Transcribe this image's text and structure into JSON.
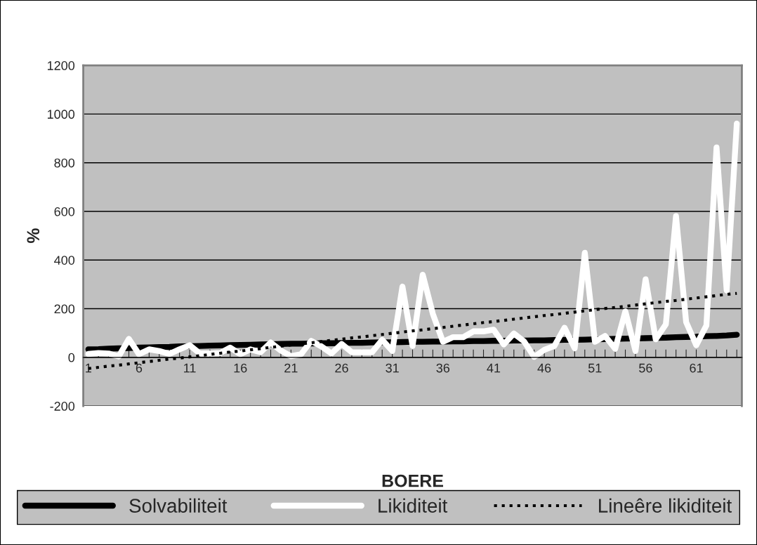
{
  "chart_data": {
    "type": "line",
    "xlabel": "BOERE",
    "ylabel": "%",
    "categories": [
      "1",
      null,
      null,
      null,
      null,
      "6",
      null,
      null,
      null,
      null,
      "11",
      null,
      null,
      null,
      null,
      "16",
      null,
      null,
      null,
      null,
      "21",
      null,
      null,
      null,
      null,
      "26",
      null,
      null,
      null,
      null,
      "31",
      null,
      null,
      null,
      null,
      "36",
      null,
      null,
      null,
      null,
      "41",
      null,
      null,
      null,
      null,
      "46",
      null,
      null,
      null,
      null,
      "51",
      null,
      null,
      null,
      null,
      "56",
      null,
      null,
      null,
      null,
      "61",
      null,
      null,
      null,
      null
    ],
    "series": [
      {
        "name": "Solvabiliteit",
        "color": "#000000",
        "line_style": "solid",
        "values": [
          33,
          34,
          36,
          37,
          38,
          40,
          41,
          42,
          43,
          45,
          46,
          47,
          48,
          49,
          50,
          51,
          52,
          53,
          54,
          55,
          56,
          56,
          57,
          58,
          58,
          59,
          60,
          60,
          61,
          62,
          62,
          63,
          64,
          64,
          65,
          65,
          66,
          66,
          67,
          67,
          68,
          68,
          69,
          69,
          70,
          70,
          71,
          72,
          72,
          73,
          74,
          75,
          76,
          77,
          78,
          79,
          80,
          81,
          83,
          84,
          85,
          87,
          88,
          90,
          93
        ]
      },
      {
        "name": "Likiditeit",
        "color": "#ffffff",
        "line_style": "solid",
        "values": [
          14,
          18,
          16,
          4,
          76,
          13,
          33,
          26,
          14,
          33,
          50,
          16,
          16,
          18,
          40,
          13,
          33,
          21,
          61,
          28,
          5,
          13,
          68,
          45,
          16,
          55,
          21,
          21,
          21,
          72,
          26,
          291,
          47,
          340,
          179,
          64,
          83,
          83,
          107,
          107,
          114,
          53,
          98,
          66,
          2,
          31,
          47,
          122,
          37,
          430,
          64,
          88,
          35,
          189,
          26,
          321,
          74,
          136,
          581,
          145,
          50,
          131,
          863,
          275,
          961
        ]
      },
      {
        "name": "Lineêre likiditeit",
        "color": "#000000",
        "line_style": "dotted",
        "values": [
          -46,
          -41,
          -36,
          -32,
          -27,
          -22,
          -17,
          -12,
          -7,
          -3,
          2,
          7,
          12,
          17,
          22,
          26,
          31,
          36,
          41,
          46,
          51,
          55,
          60,
          65,
          70,
          75,
          80,
          84,
          89,
          94,
          99,
          104,
          109,
          113,
          118,
          123,
          128,
          133,
          138,
          143,
          147,
          152,
          157,
          162,
          167,
          172,
          176,
          181,
          186,
          191,
          196,
          201,
          205,
          210,
          215,
          220,
          225,
          230,
          234,
          239,
          244,
          249,
          254,
          259,
          263
        ]
      }
    ],
    "ylim": [
      -200,
      1200
    ],
    "yticks": [
      -200,
      0,
      200,
      400,
      600,
      800,
      1000,
      1200
    ],
    "grid": "y",
    "legend": "bottom",
    "marker": "none"
  }
}
